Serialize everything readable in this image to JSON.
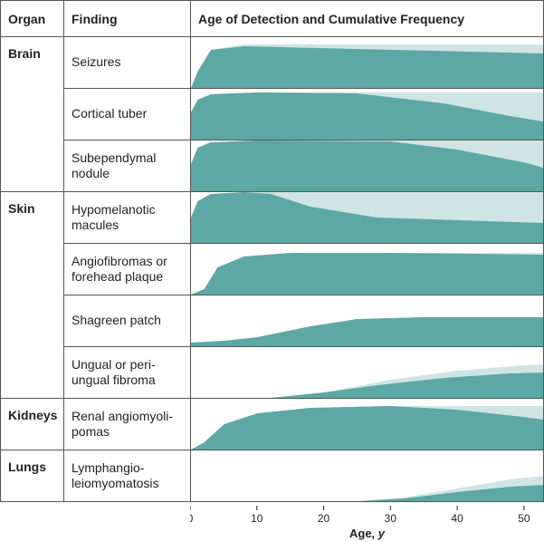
{
  "headers": {
    "organ": "Organ",
    "finding": "Finding",
    "chart": "Age of Detection and Cumulative Frequency"
  },
  "axis": {
    "label": "Age, y",
    "min": 0,
    "max": 53,
    "ticks": [
      0,
      10,
      20,
      30,
      40,
      50
    ],
    "tick_fontsize": 12,
    "label_fontsize": 13,
    "label_fontstyle": "italic-y"
  },
  "colors": {
    "dark_fill": "#5da8a4",
    "light_fill": "#cfe5e3",
    "border": "#555555",
    "text": "#222222",
    "background": "#ffffff"
  },
  "chart_cell_height": 56,
  "rows": [
    {
      "organ": "Brain",
      "findings": [
        {
          "label": "Seizures",
          "light": [
            [
              0,
              0
            ],
            [
              1,
              18
            ],
            [
              3,
              42
            ],
            [
              8,
              48
            ],
            [
              53,
              48
            ]
          ],
          "dark": [
            [
              0,
              0
            ],
            [
              1,
              18
            ],
            [
              3,
              42
            ],
            [
              8,
              46
            ],
            [
              53,
              38
            ]
          ]
        },
        {
          "label": "Cortical tuber",
          "light": [
            [
              0,
              0
            ],
            [
              0,
              30
            ],
            [
              1,
              44
            ],
            [
              3,
              50
            ],
            [
              10,
              52
            ],
            [
              53,
              52
            ]
          ],
          "dark": [
            [
              0,
              0
            ],
            [
              0,
              30
            ],
            [
              1,
              44
            ],
            [
              3,
              50
            ],
            [
              10,
              52
            ],
            [
              25,
              51
            ],
            [
              38,
              40
            ],
            [
              48,
              26
            ],
            [
              53,
              20
            ]
          ]
        },
        {
          "label": "Subependymal nodule",
          "light": [
            [
              0,
              0
            ],
            [
              0,
              30
            ],
            [
              1,
              48
            ],
            [
              3,
              54
            ],
            [
              10,
              56
            ],
            [
              53,
              56
            ]
          ],
          "dark": [
            [
              0,
              0
            ],
            [
              0,
              30
            ],
            [
              1,
              48
            ],
            [
              3,
              54
            ],
            [
              10,
              56
            ],
            [
              30,
              55
            ],
            [
              40,
              46
            ],
            [
              50,
              32
            ],
            [
              53,
              26
            ]
          ]
        }
      ]
    },
    {
      "organ": "Skin",
      "findings": [
        {
          "label": "Hypomelanotic macules",
          "light": [
            [
              0,
              0
            ],
            [
              0,
              28
            ],
            [
              1,
              46
            ],
            [
              3,
              54
            ],
            [
              8,
              56
            ],
            [
              53,
              56
            ]
          ],
          "dark": [
            [
              0,
              0
            ],
            [
              0,
              28
            ],
            [
              1,
              46
            ],
            [
              3,
              54
            ],
            [
              8,
              56
            ],
            [
              12,
              54
            ],
            [
              18,
              40
            ],
            [
              28,
              28
            ],
            [
              53,
              22
            ]
          ]
        },
        {
          "label": "Angiofibromas or forehead plaque",
          "light": [
            [
              0,
              0
            ],
            [
              2,
              6
            ],
            [
              4,
              30
            ],
            [
              8,
              42
            ],
            [
              15,
              46
            ],
            [
              53,
              46
            ]
          ],
          "dark": [
            [
              0,
              0
            ],
            [
              2,
              6
            ],
            [
              4,
              30
            ],
            [
              8,
              42
            ],
            [
              15,
              46
            ],
            [
              30,
              46
            ],
            [
              53,
              44
            ]
          ]
        },
        {
          "label": "Shagreen patch",
          "light": [
            [
              0,
              0
            ],
            [
              0,
              4
            ],
            [
              5,
              6
            ],
            [
              10,
              10
            ],
            [
              18,
              22
            ],
            [
              25,
              30
            ],
            [
              35,
              32
            ],
            [
              53,
              32
            ]
          ],
          "dark": [
            [
              0,
              0
            ],
            [
              0,
              4
            ],
            [
              5,
              6
            ],
            [
              10,
              10
            ],
            [
              18,
              22
            ],
            [
              25,
              30
            ],
            [
              35,
              32
            ],
            [
              53,
              32
            ]
          ]
        },
        {
          "label": "Ungual or peri-ungual fibroma",
          "light": [
            [
              0,
              0
            ],
            [
              12,
              0
            ],
            [
              20,
              6
            ],
            [
              30,
              20
            ],
            [
              40,
              30
            ],
            [
              50,
              36
            ],
            [
              53,
              37
            ]
          ],
          "dark": [
            [
              0,
              0
            ],
            [
              12,
              0
            ],
            [
              20,
              6
            ],
            [
              28,
              14
            ],
            [
              38,
              22
            ],
            [
              48,
              27
            ],
            [
              53,
              28
            ]
          ]
        }
      ]
    },
    {
      "organ": "Kidneys",
      "findings": [
        {
          "label": "Renal angiomyoli-pomas",
          "light": [
            [
              0,
              0
            ],
            [
              2,
              8
            ],
            [
              5,
              28
            ],
            [
              10,
              40
            ],
            [
              18,
              46
            ],
            [
              30,
              48
            ],
            [
              53,
              48
            ]
          ],
          "dark": [
            [
              0,
              0
            ],
            [
              2,
              8
            ],
            [
              5,
              28
            ],
            [
              10,
              40
            ],
            [
              18,
              46
            ],
            [
              30,
              48
            ],
            [
              40,
              44
            ],
            [
              50,
              36
            ],
            [
              53,
              33
            ]
          ]
        }
      ]
    },
    {
      "organ": "Lungs",
      "findings": [
        {
          "label": "Lymphangio-leiomyomatosis",
          "light": [
            [
              0,
              0
            ],
            [
              25,
              0
            ],
            [
              32,
              4
            ],
            [
              40,
              14
            ],
            [
              48,
              24
            ],
            [
              53,
              28
            ]
          ],
          "dark": [
            [
              0,
              0
            ],
            [
              25,
              0
            ],
            [
              32,
              3
            ],
            [
              40,
              10
            ],
            [
              48,
              16
            ],
            [
              53,
              18
            ]
          ]
        }
      ]
    }
  ]
}
